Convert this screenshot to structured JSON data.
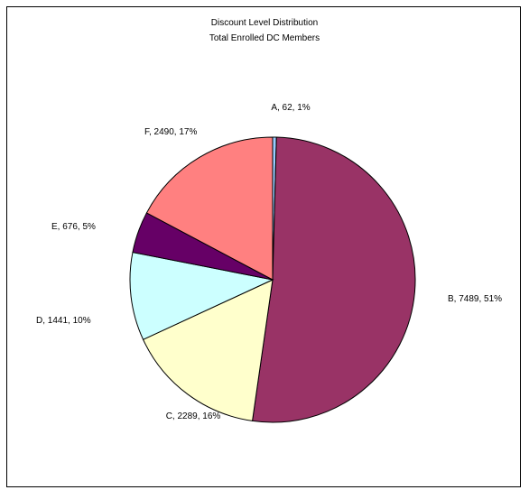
{
  "chart_data": {
    "type": "pie",
    "title": "Discount Level Distribution",
    "subtitle": "Total Enrolled DC Members",
    "slices": [
      {
        "label": "A",
        "value": 62,
        "percent": "1%",
        "color": "#99CCFF"
      },
      {
        "label": "B",
        "value": 7489,
        "percent": "51%",
        "color": "#993366"
      },
      {
        "label": "C",
        "value": 2289,
        "percent": "16%",
        "color": "#FFFFCC"
      },
      {
        "label": "D",
        "value": 1441,
        "percent": "10%",
        "color": "#CCFFFF"
      },
      {
        "label": "E",
        "value": 676,
        "percent": "5%",
        "color": "#660066"
      },
      {
        "label": "F",
        "value": 2490,
        "percent": "17%",
        "color": "#FF8080"
      }
    ],
    "data_labels": [
      "A, 62, 1%",
      "B, 7489, 51%",
      "C, 2289, 16%",
      "D, 1441, 10%",
      "E, 676, 5%",
      "F, 2490, 17%"
    ],
    "legend": "none"
  }
}
